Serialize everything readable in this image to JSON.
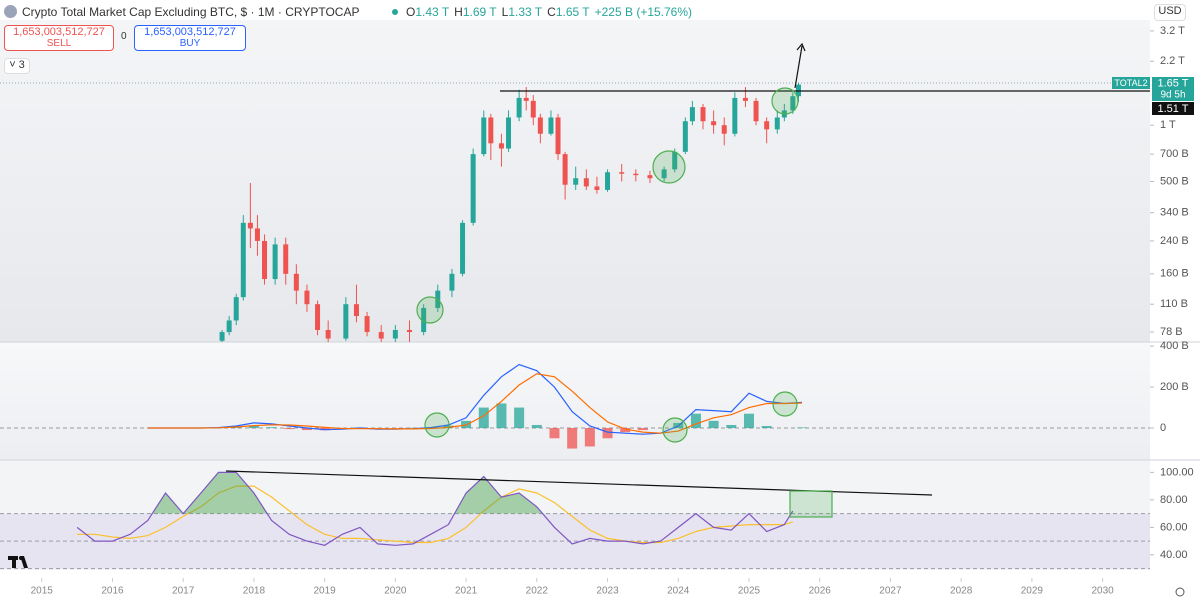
{
  "header": {
    "title": "Crypto Total Market Cap Excluding BTC, $ · 1M · CRYPTOCAP",
    "ohlc": [
      [
        "O",
        "1.43 T"
      ],
      [
        "H",
        "1.69 T"
      ],
      [
        "L",
        "1.33 T"
      ],
      [
        "C",
        "1.65 T"
      ]
    ],
    "change": "+225 B (+15.76%)",
    "sell_price": "1,653,003,512,727",
    "sell_label": "SELL",
    "spread": "0",
    "buy_price": "1,653,003,512,727",
    "buy_label": "BUY",
    "indicator_count": "3",
    "currency": "USD"
  },
  "price_labels": {
    "symbol": "TOTAL2",
    "last": "1.65 T",
    "countdown": "9d 5h",
    "level": "1.51 T"
  },
  "chart_data": [
    {
      "type": "candlestick",
      "log_scale": true,
      "up_color": "#26a69a",
      "down_color": "#ef5350",
      "xlim": [
        2014.41,
        2030.67
      ],
      "ylim": [
        69,
        3660
      ],
      "yticks": [
        {
          "value": 3200,
          "label": "3.2 T"
        },
        {
          "value": 2200,
          "label": "2.2 T"
        },
        {
          "value": 1000,
          "label": "1 T"
        },
        {
          "value": 700,
          "label": "700 B"
        },
        {
          "value": 500,
          "label": "500 B"
        },
        {
          "value": 340,
          "label": "340 B"
        },
        {
          "value": 240,
          "label": "240 B"
        },
        {
          "value": 160,
          "label": "160 B"
        },
        {
          "value": 110,
          "label": "110 B"
        },
        {
          "value": 78,
          "label": "78 B"
        }
      ],
      "x": [
        2017.55,
        2017.65,
        2017.75,
        2017.85,
        2017.95,
        2018.05,
        2018.15,
        2018.3,
        2018.45,
        2018.6,
        2018.75,
        2018.9,
        2019.05,
        2019.3,
        2019.45,
        2019.6,
        2019.8,
        2020.0,
        2020.2,
        2020.4,
        2020.6,
        2020.8,
        2020.95,
        2021.1,
        2021.25,
        2021.35,
        2021.5,
        2021.6,
        2021.75,
        2021.85,
        2021.95,
        2022.05,
        2022.2,
        2022.3,
        2022.4,
        2022.55,
        2022.7,
        2022.85,
        2023.0,
        2023.2,
        2023.4,
        2023.6,
        2023.8,
        2023.95,
        2024.1,
        2024.2,
        2024.35,
        2024.5,
        2024.65,
        2024.8,
        2024.95,
        2025.1,
        2025.25,
        2025.4,
        2025.5,
        2025.62,
        2025.7
      ],
      "open": [
        70,
        78,
        90,
        120,
        300,
        280,
        240,
        150,
        230,
        160,
        130,
        110,
        80,
        72,
        110,
        95,
        78,
        72,
        80,
        78,
        105,
        130,
        160,
        300,
        700,
        1100,
        800,
        750,
        1100,
        1400,
        1350,
        1100,
        900,
        1100,
        700,
        480,
        520,
        470,
        450,
        560,
        550,
        540,
        520,
        580,
        720,
        1050,
        1250,
        1050,
        1000,
        900,
        1400,
        1350,
        1050,
        950,
        1100,
        1200,
        1430
      ],
      "high": [
        80,
        95,
        125,
        330,
        490,
        330,
        260,
        250,
        250,
        180,
        140,
        115,
        90,
        120,
        140,
        100,
        85,
        85,
        90,
        110,
        140,
        170,
        310,
        750,
        1200,
        1150,
        900,
        1200,
        1550,
        1600,
        1450,
        1150,
        1200,
        1150,
        720,
        600,
        580,
        530,
        580,
        620,
        580,
        570,
        600,
        750,
        1100,
        1350,
        1300,
        1200,
        1100,
        1500,
        1600,
        1400,
        1100,
        1200,
        1300,
        1500,
        1690
      ],
      "low": [
        68,
        75,
        85,
        115,
        220,
        200,
        140,
        140,
        140,
        110,
        100,
        75,
        68,
        70,
        88,
        74,
        68,
        68,
        69,
        75,
        100,
        120,
        155,
        290,
        680,
        650,
        600,
        720,
        1050,
        1200,
        1000,
        800,
        880,
        650,
        400,
        450,
        450,
        430,
        440,
        500,
        500,
        490,
        500,
        560,
        700,
        1000,
        950,
        900,
        780,
        870,
        1250,
        1000,
        800,
        900,
        1050,
        1150,
        1330
      ],
      "close": [
        78,
        90,
        120,
        300,
        280,
        240,
        150,
        230,
        160,
        130,
        110,
        80,
        72,
        110,
        95,
        78,
        72,
        80,
        78,
        105,
        130,
        160,
        300,
        700,
        1100,
        800,
        750,
        1100,
        1400,
        1350,
        1100,
        900,
        1100,
        700,
        480,
        520,
        470,
        450,
        560,
        550,
        540,
        520,
        580,
        720,
        1050,
        1250,
        1050,
        1000,
        900,
        1400,
        1350,
        1050,
        950,
        1100,
        1200,
        1430,
        1650
      ]
    },
    {
      "type": "line",
      "xlim": [
        2014.41,
        2030.67
      ],
      "ylim": [
        -156,
        420
      ],
      "yticks": [
        {
          "value": 400,
          "label": "400 B"
        },
        {
          "value": 200,
          "label": "200 B"
        },
        0
      ],
      "zero_line": true,
      "x": [
        2016.5,
        2016.75,
        2017.0,
        2017.25,
        2017.5,
        2017.75,
        2018.0,
        2018.25,
        2018.5,
        2018.75,
        2019.0,
        2019.25,
        2019.5,
        2019.75,
        2020.0,
        2020.25,
        2020.5,
        2020.75,
        2021.0,
        2021.25,
        2021.5,
        2021.75,
        2022.0,
        2022.25,
        2022.5,
        2022.75,
        2023.0,
        2023.25,
        2023.5,
        2023.75,
        2024.0,
        2024.25,
        2024.5,
        2024.75,
        2025.0,
        2025.25,
        2025.5,
        2025.75
      ],
      "series": [
        {
          "kind": "bar",
          "color": "#26a69a",
          "negative_color": "#ef5350",
          "values": [
            0,
            0,
            0,
            0,
            1,
            5,
            13,
            4,
            -5,
            -10,
            -11,
            -3,
            3,
            -2,
            -1,
            1,
            4,
            12,
            35,
            100,
            120,
            100,
            15,
            -50,
            -100,
            -90,
            -50,
            -20,
            -10,
            0,
            25,
            70,
            35,
            15,
            70,
            10,
            0,
            3
          ]
        },
        {
          "kind": "line",
          "color": "#2962ff",
          "values": [
            0,
            0,
            0,
            0,
            2,
            10,
            25,
            20,
            10,
            0,
            -8,
            -5,
            0,
            -5,
            -5,
            -3,
            2,
            15,
            50,
            160,
            250,
            310,
            280,
            200,
            80,
            10,
            -20,
            -25,
            -30,
            -25,
            10,
            90,
            85,
            80,
            170,
            130,
            120,
            125
          ]
        },
        {
          "kind": "line",
          "color": "#ff6d00",
          "values": [
            0,
            0,
            0,
            0,
            1,
            5,
            12,
            16,
            15,
            10,
            3,
            -2,
            -3,
            -3,
            -4,
            -4,
            -2,
            3,
            15,
            60,
            130,
            210,
            265,
            250,
            180,
            100,
            30,
            -5,
            -20,
            -25,
            -15,
            20,
            50,
            65,
            100,
            120,
            120,
            122
          ]
        }
      ]
    },
    {
      "type": "line",
      "xlim": [
        2014.41,
        2030.67
      ],
      "ylim": [
        29,
        109
      ],
      "yticks": [
        {
          "value": 100,
          "label": "100.00"
        },
        {
          "value": 80,
          "label": "80.00"
        },
        {
          "value": 60,
          "label": "60.00"
        },
        {
          "value": 40,
          "label": "40.00"
        }
      ],
      "xticks": [
        2015,
        2016,
        2017,
        2018,
        2019,
        2020,
        2021,
        2022,
        2023,
        2024,
        2025,
        2026,
        2027,
        2028,
        2029,
        2030
      ],
      "bands": [
        70,
        50,
        30
      ],
      "band_color": "#7e57c2",
      "overbought_fill": "#43a047",
      "x": [
        2015.5,
        2015.75,
        2016.0,
        2016.25,
        2016.5,
        2016.75,
        2017.0,
        2017.25,
        2017.5,
        2017.75,
        2018.0,
        2018.25,
        2018.5,
        2018.75,
        2019.0,
        2019.25,
        2019.5,
        2019.75,
        2020.0,
        2020.25,
        2020.5,
        2020.75,
        2021.0,
        2021.25,
        2021.5,
        2021.75,
        2022.0,
        2022.25,
        2022.5,
        2022.75,
        2023.0,
        2023.25,
        2023.5,
        2023.75,
        2024.0,
        2024.25,
        2024.5,
        2024.75,
        2025.0,
        2025.25,
        2025.5,
        2025.62
      ],
      "series": [
        {
          "kind": "line",
          "color": "#fbc02d",
          "values": [
            55,
            55,
            53,
            52,
            54,
            60,
            68,
            75,
            85,
            90,
            90,
            82,
            72,
            62,
            55,
            52,
            52,
            51,
            50,
            49,
            49,
            52,
            60,
            72,
            82,
            88,
            85,
            78,
            68,
            58,
            52,
            50,
            49,
            49,
            52,
            57,
            60,
            61,
            62,
            62,
            62,
            64
          ]
        },
        {
          "kind": "line",
          "color": "#7e57c2",
          "values": [
            60,
            50,
            50,
            55,
            65,
            85,
            70,
            85,
            100,
            100,
            85,
            65,
            55,
            50,
            47,
            55,
            60,
            48,
            47,
            48,
            55,
            62,
            85,
            97,
            82,
            85,
            75,
            60,
            48,
            52,
            50,
            50,
            48,
            50,
            60,
            70,
            60,
            58,
            70,
            57,
            62,
            72
          ]
        }
      ]
    }
  ]
}
